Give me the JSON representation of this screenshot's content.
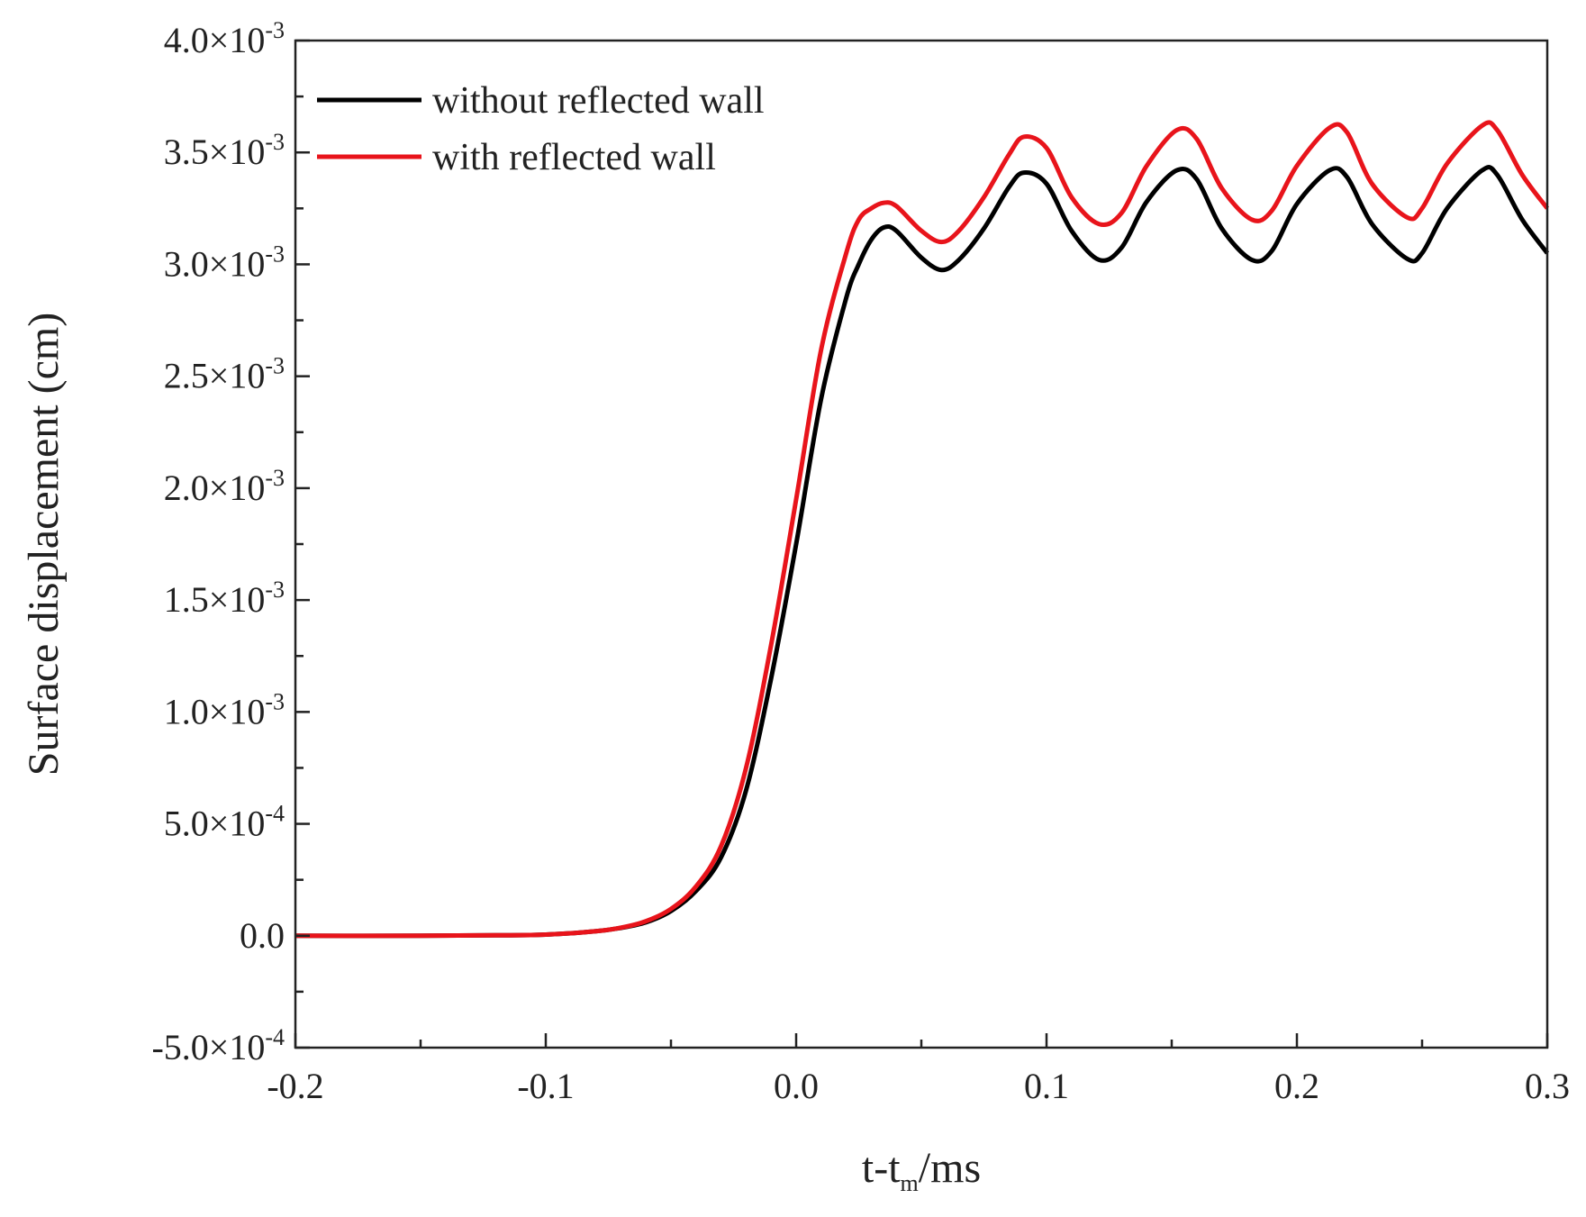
{
  "chart_data": {
    "type": "line",
    "title": "",
    "xlabel": {
      "base": "t-t",
      "subscript": "m",
      "suffix": "/ms"
    },
    "ylabel": "Surface displacement (cm)",
    "xlim": [
      -0.2,
      0.3
    ],
    "ylim": [
      -0.0005,
      0.004
    ],
    "grid": false,
    "legend_position": "top-left",
    "x_ticks": [
      {
        "value": -0.2,
        "label": "-0.2"
      },
      {
        "value": -0.1,
        "label": "-0.1"
      },
      {
        "value": 0.0,
        "label": "0.0"
      },
      {
        "value": 0.1,
        "label": "0.1"
      },
      {
        "value": 0.2,
        "label": "0.2"
      },
      {
        "value": 0.3,
        "label": "0.3"
      }
    ],
    "y_ticks": [
      {
        "value": -0.0005,
        "mantissa": "-5.0",
        "exponent": "-4"
      },
      {
        "value": 0.0,
        "mantissa": "0.0",
        "exponent": ""
      },
      {
        "value": 0.0005,
        "mantissa": "5.0",
        "exponent": "-4"
      },
      {
        "value": 0.001,
        "mantissa": "1.0",
        "exponent": "-3"
      },
      {
        "value": 0.0015,
        "mantissa": "1.5",
        "exponent": "-3"
      },
      {
        "value": 0.002,
        "mantissa": "2.0",
        "exponent": "-3"
      },
      {
        "value": 0.0025,
        "mantissa": "2.5",
        "exponent": "-3"
      },
      {
        "value": 0.003,
        "mantissa": "3.0",
        "exponent": "-3"
      },
      {
        "value": 0.0035,
        "mantissa": "3.5",
        "exponent": "-3"
      },
      {
        "value": 0.004,
        "mantissa": "4.0",
        "exponent": "-3"
      }
    ],
    "times_symbol": "×10",
    "series": [
      {
        "name": "without reflected wall",
        "color": "#000000",
        "x": [
          -0.2,
          -0.15,
          -0.12,
          -0.1,
          -0.08,
          -0.07,
          -0.06,
          -0.05,
          -0.04,
          -0.03,
          -0.02,
          -0.01,
          0.0,
          0.01,
          0.02,
          0.025,
          0.03,
          0.035,
          0.04,
          0.05,
          0.058,
          0.065,
          0.075,
          0.085,
          0.091,
          0.1,
          0.11,
          0.121,
          0.13,
          0.14,
          0.152,
          0.16,
          0.17,
          0.182,
          0.19,
          0.2,
          0.213,
          0.22,
          0.23,
          0.244,
          0.25,
          0.26,
          0.274,
          0.28,
          0.29,
          0.3
        ],
        "y": [
          0.0,
          0.0,
          2e-06,
          5e-06,
          2e-05,
          3.5e-05,
          6e-05,
          0.00011,
          0.0002,
          0.00035,
          0.00065,
          0.00115,
          0.00175,
          0.0024,
          0.00285,
          0.003,
          0.00311,
          0.003165,
          0.00315,
          0.00303,
          0.002975,
          0.00302,
          0.00316,
          0.003345,
          0.00341,
          0.00336,
          0.00315,
          0.00302,
          0.003075,
          0.00328,
          0.00342,
          0.00338,
          0.00316,
          0.00302,
          0.00306,
          0.00327,
          0.00342,
          0.00339,
          0.00318,
          0.003025,
          0.00305,
          0.00325,
          0.00342,
          0.0034,
          0.0032,
          0.00305
        ]
      },
      {
        "name": "with reflected wall",
        "color": "#e8141b",
        "x": [
          -0.2,
          -0.15,
          -0.12,
          -0.1,
          -0.08,
          -0.07,
          -0.06,
          -0.05,
          -0.04,
          -0.03,
          -0.02,
          -0.01,
          0.0,
          0.01,
          0.02,
          0.025,
          0.03,
          0.035,
          0.04,
          0.05,
          0.058,
          0.065,
          0.075,
          0.085,
          0.091,
          0.1,
          0.11,
          0.121,
          0.13,
          0.14,
          0.152,
          0.16,
          0.17,
          0.182,
          0.19,
          0.2,
          0.213,
          0.22,
          0.23,
          0.244,
          0.25,
          0.26,
          0.274,
          0.28,
          0.29,
          0.3
        ],
        "y": [
          0.0,
          0.0,
          2e-06,
          5e-06,
          2e-05,
          3.6e-05,
          6.5e-05,
          0.00012,
          0.00022,
          0.0004,
          0.00075,
          0.0013,
          0.00195,
          0.00262,
          0.00305,
          0.0032,
          0.00325,
          0.003275,
          0.00326,
          0.00315,
          0.0031,
          0.00315,
          0.0033,
          0.00349,
          0.00357,
          0.00352,
          0.0033,
          0.00318,
          0.00323,
          0.00344,
          0.0036,
          0.00356,
          0.00334,
          0.0032,
          0.00324,
          0.00344,
          0.00361,
          0.00359,
          0.00336,
          0.00321,
          0.00325,
          0.00345,
          0.00362,
          0.0036,
          0.0034,
          0.00325
        ]
      }
    ]
  }
}
